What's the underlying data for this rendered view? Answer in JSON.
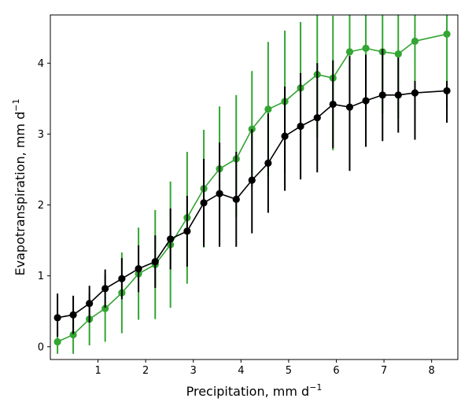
{
  "chart_data": {
    "type": "line",
    "xlabel": "Precipitation,  mm d",
    "xlabel_sup": "−1",
    "ylabel": "Evapotranspiration,  mm d",
    "ylabel_sup": "−1",
    "xlim": [
      0.0,
      8.55
    ],
    "ylim": [
      -0.18,
      4.68
    ],
    "xticks": [
      1,
      2,
      3,
      4,
      5,
      6,
      7,
      8
    ],
    "xtick_labels": [
      "1",
      "2",
      "3",
      "4",
      "5",
      "6",
      "7",
      "8"
    ],
    "yticks": [
      0,
      1,
      2,
      3,
      4
    ],
    "ytick_labels": [
      "0",
      "1",
      "2",
      "3",
      "4"
    ],
    "grid": false,
    "x": [
      0.15,
      0.48,
      0.82,
      1.15,
      1.5,
      1.85,
      2.2,
      2.52,
      2.87,
      3.22,
      3.55,
      3.9,
      4.23,
      4.57,
      4.92,
      5.25,
      5.6,
      5.93,
      6.28,
      6.62,
      6.97,
      7.3,
      7.65,
      8.32
    ],
    "series": [
      {
        "color": "#000000",
        "values": [
          0.41,
          0.45,
          0.61,
          0.82,
          0.96,
          1.1,
          1.2,
          1.52,
          1.63,
          2.03,
          2.16,
          2.08,
          2.35,
          2.59,
          2.97,
          3.11,
          3.23,
          3.42,
          3.38,
          3.47,
          3.55,
          3.55,
          3.58,
          3.61
        ],
        "err_lower": [
          0.27,
          0.27,
          0.27,
          0.27,
          0.29,
          0.33,
          0.37,
          0.43,
          0.5,
          0.62,
          0.75,
          0.67,
          0.75,
          0.7,
          0.77,
          0.75,
          0.77,
          0.62,
          0.9,
          0.65,
          0.65,
          0.53,
          0.66,
          0.45
        ],
        "err_upper": [
          0.34,
          0.27,
          0.25,
          0.27,
          0.29,
          0.33,
          0.37,
          0.43,
          0.5,
          0.62,
          0.72,
          0.67,
          0.72,
          0.7,
          0.7,
          0.75,
          0.77,
          0.62,
          0.72,
          0.65,
          0.65,
          0.53,
          0.17,
          0.14
        ]
      },
      {
        "color": "#33a532",
        "values": [
          0.07,
          0.17,
          0.39,
          0.54,
          0.76,
          1.03,
          1.16,
          1.44,
          1.82,
          2.23,
          2.51,
          2.65,
          3.07,
          3.35,
          3.46,
          3.65,
          3.84,
          3.79,
          4.16,
          4.21,
          4.16,
          4.13,
          4.31,
          4.41
        ],
        "err_lower": [
          0.17,
          0.27,
          0.37,
          0.47,
          0.57,
          0.65,
          0.77,
          0.89,
          0.93,
          0.83,
          0.88,
          0.82,
          0.82,
          0.95,
          1.02,
          1.27,
          0.89,
          1.02,
          0.76,
          0.87,
          0.87,
          0.91,
          1.1,
          1.04
        ],
        "err_upper": [
          0.17,
          0.27,
          0.37,
          0.47,
          0.57,
          0.65,
          0.77,
          0.89,
          0.93,
          0.83,
          0.88,
          0.9,
          0.82,
          0.95,
          1.0,
          0.93,
          0.84,
          0.88,
          0.52,
          0.47,
          0.52,
          0.55,
          0.37,
          0.27
        ]
      }
    ]
  }
}
